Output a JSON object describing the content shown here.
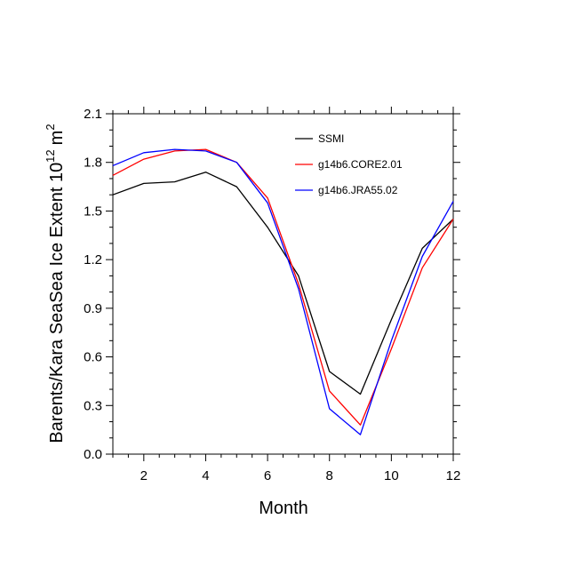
{
  "chart_data": {
    "type": "line",
    "xlabel": "Month",
    "ylabel": "Barents/Kara SeaSea Ice Extent 10",
    "ylabel_exponent": "12",
    "ylabel_unit": "m",
    "ylabel_unit_exponent": "2",
    "xlim": [
      1,
      12
    ],
    "ylim": [
      0.0,
      2.1
    ],
    "xticks": [
      2,
      4,
      6,
      8,
      10,
      12
    ],
    "xtick_labels": [
      "2",
      "4",
      "6",
      "8",
      "10",
      "12"
    ],
    "yticks": [
      0.0,
      0.3,
      0.6,
      0.9,
      1.2,
      1.5,
      1.8,
      2.1
    ],
    "ytick_labels": [
      "0.0",
      "0.3",
      "0.6",
      "0.9",
      "1.2",
      "1.5",
      "1.8",
      "2.1"
    ],
    "grid": false,
    "legend_position": "top-right",
    "x": [
      1,
      2,
      3,
      4,
      5,
      6,
      7,
      8,
      9,
      10,
      11,
      12
    ],
    "series": [
      {
        "name": "SSMI",
        "color": "#000000",
        "values": [
          1.6,
          1.67,
          1.68,
          1.74,
          1.65,
          1.4,
          1.1,
          0.51,
          0.37,
          0.83,
          1.27,
          1.45
        ]
      },
      {
        "name": "g14b6.CORE2.01",
        "color": "#ff0000",
        "values": [
          1.72,
          1.82,
          1.87,
          1.88,
          1.8,
          1.58,
          1.05,
          0.39,
          0.18,
          0.65,
          1.15,
          1.45
        ]
      },
      {
        "name": "g14b6.JRA55.02",
        "color": "#0000ff",
        "values": [
          1.78,
          1.86,
          1.88,
          1.87,
          1.8,
          1.55,
          1.02,
          0.28,
          0.12,
          0.7,
          1.22,
          1.56
        ]
      }
    ]
  }
}
